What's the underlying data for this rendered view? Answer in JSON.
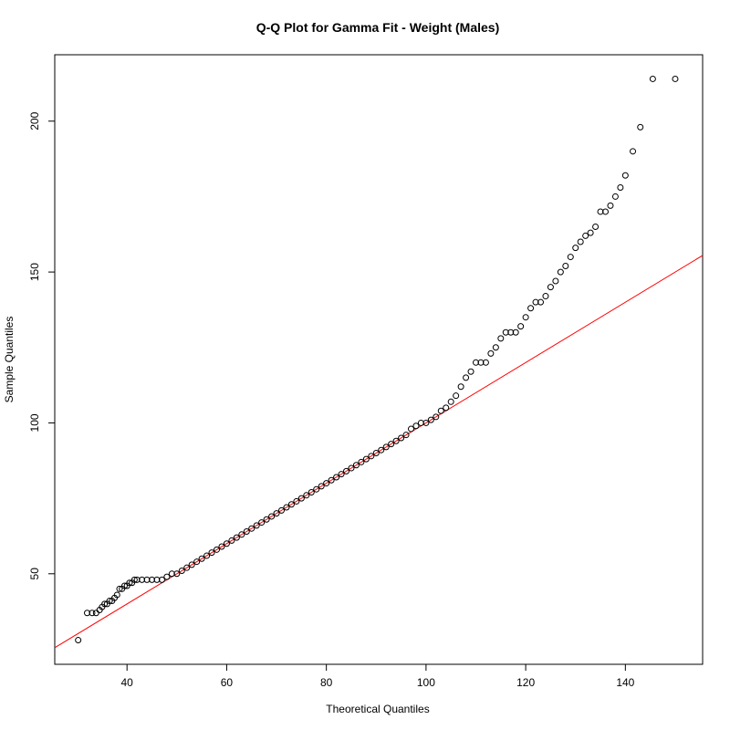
{
  "chart_data": {
    "type": "scatter",
    "title": "Q-Q Plot for Gamma Fit - Weight (Males)",
    "xlabel": "Theoretical Quantiles",
    "ylabel": "Sample Quantiles",
    "xlim": [
      25.5,
      155.5
    ],
    "ylim": [
      20,
      222
    ],
    "xticks": [
      40,
      60,
      80,
      100,
      120,
      140
    ],
    "yticks": [
      50,
      100,
      150,
      200
    ],
    "grid": false,
    "legend": "none",
    "reference_line": {
      "color": "#ff0000",
      "points": [
        [
          25.5,
          25.5
        ],
        [
          155.5,
          155.5
        ]
      ]
    },
    "series": [
      {
        "marker": "open-circle",
        "color": "#000000",
        "points": [
          [
            30.2,
            28
          ],
          [
            32.0,
            37
          ],
          [
            33.0,
            37
          ],
          [
            33.8,
            37
          ],
          [
            34.5,
            38
          ],
          [
            35.0,
            39
          ],
          [
            35.5,
            40
          ],
          [
            36.0,
            40
          ],
          [
            36.5,
            41
          ],
          [
            37.0,
            41
          ],
          [
            37.5,
            42
          ],
          [
            38.0,
            43
          ],
          [
            38.5,
            45
          ],
          [
            39.0,
            45
          ],
          [
            39.5,
            46
          ],
          [
            40.0,
            46
          ],
          [
            40.5,
            47
          ],
          [
            41.0,
            47
          ],
          [
            41.5,
            48
          ],
          [
            42.0,
            48
          ],
          [
            43.0,
            48
          ],
          [
            44.0,
            48
          ],
          [
            45.0,
            48
          ],
          [
            46.0,
            48
          ],
          [
            47.0,
            48
          ],
          [
            48.0,
            49
          ],
          [
            49.0,
            50
          ],
          [
            50.0,
            50
          ],
          [
            51.0,
            51
          ],
          [
            52.0,
            52
          ],
          [
            53.0,
            53
          ],
          [
            54.0,
            54
          ],
          [
            55.0,
            55
          ],
          [
            56.0,
            56
          ],
          [
            57.0,
            57
          ],
          [
            58.0,
            58
          ],
          [
            59.0,
            59
          ],
          [
            60.0,
            60
          ],
          [
            61.0,
            61
          ],
          [
            62.0,
            62
          ],
          [
            63.0,
            63
          ],
          [
            64.0,
            64
          ],
          [
            65.0,
            65
          ],
          [
            66.0,
            66
          ],
          [
            67.0,
            67
          ],
          [
            68.0,
            68
          ],
          [
            69.0,
            69
          ],
          [
            70.0,
            70
          ],
          [
            71.0,
            71
          ],
          [
            72.0,
            72
          ],
          [
            73.0,
            73
          ],
          [
            74.0,
            74
          ],
          [
            75.0,
            75
          ],
          [
            76.0,
            76
          ],
          [
            77.0,
            77
          ],
          [
            78.0,
            78
          ],
          [
            79.0,
            79
          ],
          [
            80.0,
            80
          ],
          [
            81.0,
            81
          ],
          [
            82.0,
            82
          ],
          [
            83.0,
            83
          ],
          [
            84.0,
            84
          ],
          [
            85.0,
            85
          ],
          [
            86.0,
            86
          ],
          [
            87.0,
            87
          ],
          [
            88.0,
            88
          ],
          [
            89.0,
            89
          ],
          [
            90.0,
            90
          ],
          [
            91.0,
            91
          ],
          [
            92.0,
            92
          ],
          [
            93.0,
            93
          ],
          [
            94.0,
            94
          ],
          [
            95.0,
            95
          ],
          [
            96.0,
            96
          ],
          [
            97.0,
            98
          ],
          [
            98.0,
            99
          ],
          [
            99.0,
            100
          ],
          [
            100.0,
            100
          ],
          [
            101.0,
            101
          ],
          [
            102.0,
            102
          ],
          [
            103.0,
            104
          ],
          [
            104.0,
            105
          ],
          [
            105.0,
            107
          ],
          [
            106.0,
            109
          ],
          [
            107.0,
            112
          ],
          [
            108.0,
            115
          ],
          [
            109.0,
            117
          ],
          [
            110.0,
            120
          ],
          [
            111.0,
            120
          ],
          [
            112.0,
            120
          ],
          [
            113.0,
            123
          ],
          [
            114.0,
            125
          ],
          [
            115.0,
            128
          ],
          [
            116.0,
            130
          ],
          [
            117.0,
            130
          ],
          [
            118.0,
            130
          ],
          [
            119.0,
            132
          ],
          [
            120.0,
            135
          ],
          [
            121.0,
            138
          ],
          [
            122.0,
            140
          ],
          [
            123.0,
            140
          ],
          [
            124.0,
            142
          ],
          [
            125.0,
            145
          ],
          [
            126.0,
            147
          ],
          [
            127.0,
            150
          ],
          [
            128.0,
            152
          ],
          [
            129.0,
            155
          ],
          [
            130.0,
            158
          ],
          [
            131.0,
            160
          ],
          [
            132.0,
            162
          ],
          [
            133.0,
            163
          ],
          [
            134.0,
            165
          ],
          [
            135.0,
            170
          ],
          [
            136.0,
            170
          ],
          [
            137.0,
            172
          ],
          [
            138.0,
            175
          ],
          [
            139.0,
            178
          ],
          [
            140.0,
            182
          ],
          [
            141.5,
            190
          ],
          [
            143.0,
            198
          ],
          [
            145.5,
            214
          ],
          [
            150.0,
            214
          ]
        ]
      }
    ]
  }
}
